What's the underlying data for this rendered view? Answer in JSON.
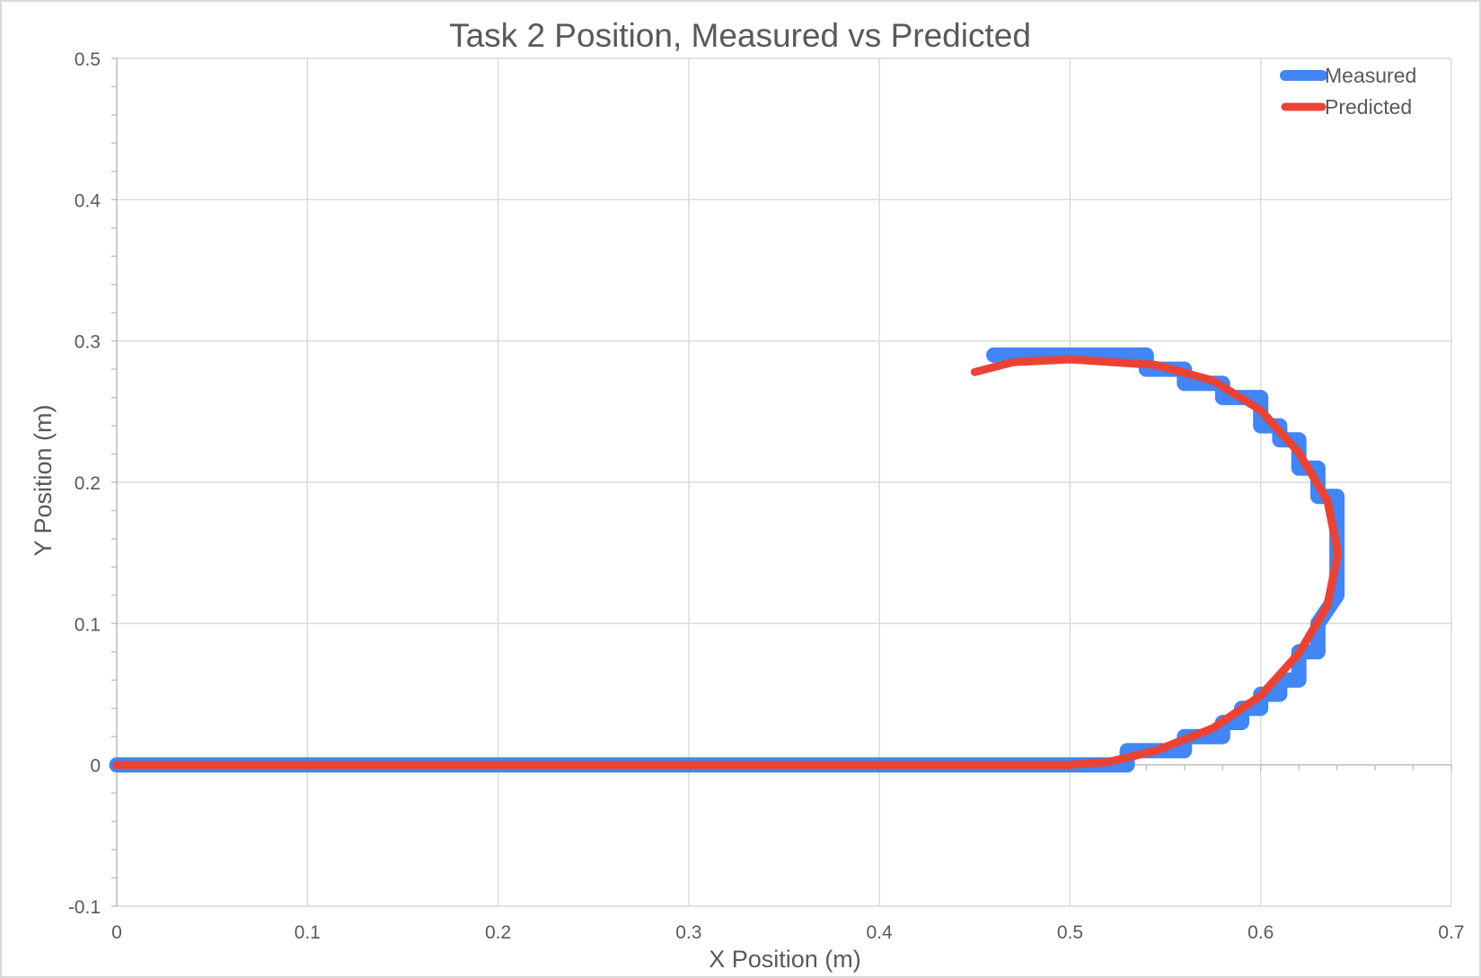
{
  "chart_data": {
    "type": "line",
    "title": "Task 2 Position, Measured vs Predicted",
    "xlabel": "X Position (m)",
    "ylabel": "Y Position (m)",
    "xlim": [
      0,
      0.7
    ],
    "ylim": [
      -0.1,
      0.5
    ],
    "xticks": [
      "0",
      "0.1",
      "0.2",
      "0.3",
      "0.4",
      "0.5",
      "0.6",
      "0.7"
    ],
    "yticks": [
      "-0.1",
      "0",
      "0.1",
      "0.2",
      "0.3",
      "0.4",
      "0.5"
    ],
    "grid": true,
    "legend_position": "top-right",
    "series": [
      {
        "name": "Measured",
        "color": "#4285f4",
        "x": [
          0,
          0.53,
          0.53,
          0.56,
          0.56,
          0.58,
          0.58,
          0.59,
          0.59,
          0.6,
          0.6,
          0.61,
          0.61,
          0.62,
          0.62,
          0.63,
          0.63,
          0.64,
          0.64,
          0.63,
          0.63,
          0.62,
          0.62,
          0.61,
          0.61,
          0.6,
          0.6,
          0.58,
          0.58,
          0.56,
          0.56,
          0.54,
          0.54,
          0.46
        ],
        "y": [
          0,
          0,
          0.01,
          0.01,
          0.02,
          0.02,
          0.03,
          0.03,
          0.04,
          0.04,
          0.05,
          0.05,
          0.06,
          0.06,
          0.08,
          0.08,
          0.1,
          0.12,
          0.19,
          0.19,
          0.21,
          0.21,
          0.23,
          0.23,
          0.24,
          0.24,
          0.26,
          0.26,
          0.27,
          0.27,
          0.28,
          0.28,
          0.29,
          0.29
        ]
      },
      {
        "name": "Predicted",
        "color": "#ea4335",
        "x": [
          0,
          0.5,
          0.52,
          0.545,
          0.575,
          0.6,
          0.62,
          0.635,
          0.6405,
          0.635,
          0.62,
          0.6,
          0.575,
          0.545,
          0.5,
          0.47,
          0.45
        ],
        "y": [
          0,
          0,
          0.002,
          0.01,
          0.026,
          0.049,
          0.079,
          0.113,
          0.15,
          0.187,
          0.221,
          0.251,
          0.272,
          0.283,
          0.287,
          0.285,
          0.278
        ]
      }
    ]
  }
}
